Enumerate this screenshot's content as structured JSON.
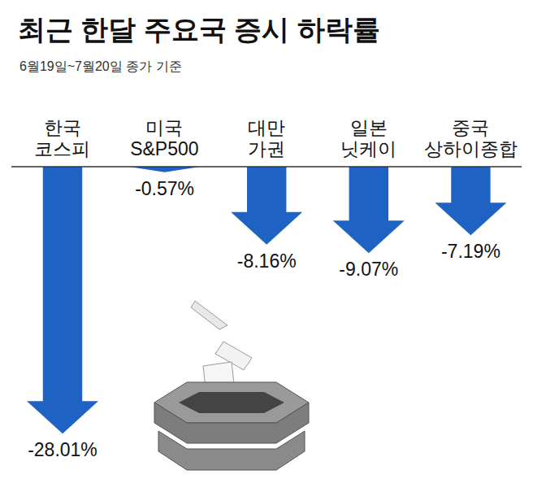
{
  "chart_data": {
    "type": "bar",
    "title": "최근 한달 주요국 증시 하락률",
    "subtitle": "6월19일~7월20일 종가 기준",
    "categories": [
      "한국\n코스피",
      "미국\nS&P500",
      "대만\n가권",
      "일본\n닛케이",
      "중국\n상하이종합"
    ],
    "values": [
      -28.01,
      -0.57,
      -8.16,
      -9.07,
      -7.19
    ],
    "value_labels": [
      "-28.01%",
      "-0.57%",
      "-8.16%",
      "-9.07%",
      "-7.19%"
    ],
    "color": "#1e63c4",
    "ylim": [
      -32,
      0
    ],
    "data_labels": true,
    "tick_labels": "x",
    "marker": "arrow"
  }
}
